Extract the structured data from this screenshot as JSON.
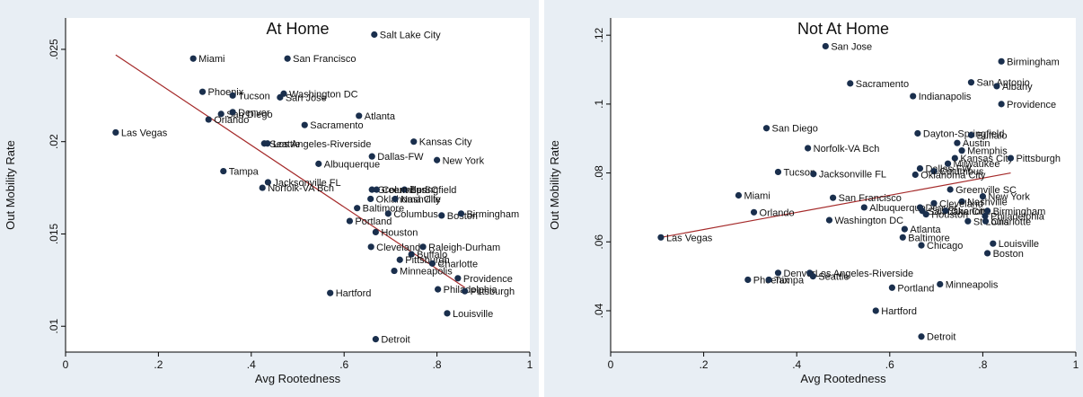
{
  "chart_data": [
    {
      "type": "scatter",
      "title": "At Home",
      "xlabel": "Avg Rootedness",
      "ylabel": "Out Mobility Rate",
      "xlim": [
        0,
        1
      ],
      "ylim": [
        0.0086,
        0.0267
      ],
      "xticks": [
        "0",
        ".2",
        ".4",
        ".6",
        ".8",
        "1"
      ],
      "xtick_values": [
        0,
        0.2,
        0.4,
        0.6,
        0.8,
        1
      ],
      "yticks": [
        ".01",
        ".015",
        ".02",
        ".025"
      ],
      "ytick_values": [
        0.01,
        0.015,
        0.02,
        0.025
      ],
      "grid": false,
      "fit_line": [
        [
          0.108,
          0.0247
        ],
        [
          0.86,
          0.0121
        ]
      ],
      "points": [
        {
          "label": "Salt Lake City",
          "x": 0.665,
          "y": 0.0258
        },
        {
          "label": "Miami",
          "x": 0.275,
          "y": 0.0245
        },
        {
          "label": "San Francisco",
          "x": 0.478,
          "y": 0.0245
        },
        {
          "label": "Phoenix",
          "x": 0.295,
          "y": 0.0227
        },
        {
          "label": "Tucson",
          "x": 0.36,
          "y": 0.0225
        },
        {
          "label": "Washington DC",
          "x": 0.47,
          "y": 0.0226
        },
        {
          "label": "San Jose",
          "x": 0.462,
          "y": 0.0224
        },
        {
          "label": "San Diego",
          "x": 0.335,
          "y": 0.0215
        },
        {
          "label": "Denver",
          "x": 0.36,
          "y": 0.0216
        },
        {
          "label": "Orlando",
          "x": 0.308,
          "y": 0.0212
        },
        {
          "label": "Atlanta",
          "x": 0.632,
          "y": 0.0214
        },
        {
          "label": "Sacramento",
          "x": 0.515,
          "y": 0.0209
        },
        {
          "label": "Las Vegas",
          "x": 0.108,
          "y": 0.0205
        },
        {
          "label": "Kansas City",
          "x": 0.75,
          "y": 0.02
        },
        {
          "label": "Seattle",
          "x": 0.428,
          "y": 0.0199
        },
        {
          "label": "Los Angeles-Riverside",
          "x": 0.435,
          "y": 0.0199
        },
        {
          "label": "Dallas-FW",
          "x": 0.66,
          "y": 0.0192
        },
        {
          "label": "New York",
          "x": 0.8,
          "y": 0.019
        },
        {
          "label": "Albuquerque",
          "x": 0.545,
          "y": 0.0188
        },
        {
          "label": "Tampa",
          "x": 0.34,
          "y": 0.0184
        },
        {
          "label": "Jacksonville FL",
          "x": 0.436,
          "y": 0.0178
        },
        {
          "label": "Norfolk-VA Bch",
          "x": 0.424,
          "y": 0.0175
        },
        {
          "label": "Greenville SC",
          "x": 0.66,
          "y": 0.0174
        },
        {
          "label": "Springfield",
          "x": 0.73,
          "y": 0.0174
        },
        {
          "label": "Columbus",
          "x": 0.67,
          "y": 0.0174
        },
        {
          "label": "Oklahoma City",
          "x": 0.657,
          "y": 0.0169
        },
        {
          "label": "Nashville",
          "x": 0.71,
          "y": 0.0169
        },
        {
          "label": "Baltimore",
          "x": 0.628,
          "y": 0.0164
        },
        {
          "label": "Columbus",
          "x": 0.695,
          "y": 0.0161
        },
        {
          "label": "Boston",
          "x": 0.81,
          "y": 0.016
        },
        {
          "label": "Birmingham",
          "x": 0.852,
          "y": 0.0161
        },
        {
          "label": "Portland",
          "x": 0.612,
          "y": 0.0157
        },
        {
          "label": "Houston",
          "x": 0.668,
          "y": 0.0151
        },
        {
          "label": "Cleveland",
          "x": 0.658,
          "y": 0.0143
        },
        {
          "label": "Raleigh-Durham",
          "x": 0.77,
          "y": 0.0143
        },
        {
          "label": "Buffalo",
          "x": 0.745,
          "y": 0.0139
        },
        {
          "label": "Pittsburgh",
          "x": 0.72,
          "y": 0.0136
        },
        {
          "label": "Charlotte",
          "x": 0.79,
          "y": 0.0134
        },
        {
          "label": "Minneapolis",
          "x": 0.708,
          "y": 0.013
        },
        {
          "label": "Providence",
          "x": 0.845,
          "y": 0.0126
        },
        {
          "label": "Hartford",
          "x": 0.57,
          "y": 0.0118
        },
        {
          "label": "Philadelphia",
          "x": 0.802,
          "y": 0.012
        },
        {
          "label": "Pittsburgh",
          "x": 0.86,
          "y": 0.0119
        },
        {
          "label": "Louisville",
          "x": 0.822,
          "y": 0.0107
        },
        {
          "label": "Detroit",
          "x": 0.668,
          "y": 0.0093
        }
      ]
    },
    {
      "type": "scatter",
      "title": "Not At Home",
      "xlabel": "Avg Rootedness",
      "ylabel": "Out Mobility Rate",
      "xlim": [
        0,
        1
      ],
      "ylim": [
        0.028,
        0.125
      ],
      "xticks": [
        "0",
        ".2",
        ".4",
        ".6",
        ".8",
        "1"
      ],
      "xtick_values": [
        0,
        0.2,
        0.4,
        0.6,
        0.8,
        1
      ],
      "yticks": [
        ".04",
        ".06",
        ".08",
        ".1",
        ".12"
      ],
      "ytick_values": [
        0.04,
        0.06,
        0.08,
        0.1,
        0.12
      ],
      "grid": false,
      "fit_line": [
        [
          0.108,
          0.0613
        ],
        [
          0.86,
          0.08
        ]
      ],
      "points": [
        {
          "label": "San Jose",
          "x": 0.462,
          "y": 0.1168
        },
        {
          "label": "Birmingham",
          "x": 0.84,
          "y": 0.1124
        },
        {
          "label": "Sacramento",
          "x": 0.515,
          "y": 0.106
        },
        {
          "label": "San Antonio",
          "x": 0.775,
          "y": 0.1063
        },
        {
          "label": "Albany",
          "x": 0.83,
          "y": 0.1052
        },
        {
          "label": "Indianapolis",
          "x": 0.65,
          "y": 0.1023
        },
        {
          "label": "Providence",
          "x": 0.84,
          "y": 0.1
        },
        {
          "label": "San Diego",
          "x": 0.335,
          "y": 0.093
        },
        {
          "label": "Dayton-Springfield",
          "x": 0.66,
          "y": 0.0915
        },
        {
          "label": "Buffalo",
          "x": 0.775,
          "y": 0.091
        },
        {
          "label": "Austin",
          "x": 0.745,
          "y": 0.0887
        },
        {
          "label": "Norfolk-VA Bch",
          "x": 0.424,
          "y": 0.0872
        },
        {
          "label": "Memphis",
          "x": 0.755,
          "y": 0.0865
        },
        {
          "label": "Kansas City",
          "x": 0.74,
          "y": 0.0843
        },
        {
          "label": "Pittsburgh",
          "x": 0.86,
          "y": 0.0843
        },
        {
          "label": "Milwaukee",
          "x": 0.725,
          "y": 0.0827
        },
        {
          "label": "Dallas-FW",
          "x": 0.665,
          "y": 0.0813
        },
        {
          "label": "Columbus",
          "x": 0.695,
          "y": 0.0805
        },
        {
          "label": "Tucson",
          "x": 0.36,
          "y": 0.0803
        },
        {
          "label": "Jacksonville FL",
          "x": 0.436,
          "y": 0.0797
        },
        {
          "label": "Oklahoma City",
          "x": 0.655,
          "y": 0.0795
        },
        {
          "label": "Greenville SC",
          "x": 0.73,
          "y": 0.0752
        },
        {
          "label": "Miami",
          "x": 0.275,
          "y": 0.0735
        },
        {
          "label": "New York",
          "x": 0.8,
          "y": 0.0732
        },
        {
          "label": "San Francisco",
          "x": 0.478,
          "y": 0.0728
        },
        {
          "label": "Nashville",
          "x": 0.755,
          "y": 0.0717
        },
        {
          "label": "Cleveland",
          "x": 0.695,
          "y": 0.0712
        },
        {
          "label": "Albuquerque",
          "x": 0.545,
          "y": 0.07
        },
        {
          "label": "Denver",
          "x": 0.665,
          "y": 0.07
        },
        {
          "label": "Salt Lake City",
          "x": 0.67,
          "y": 0.069
        },
        {
          "label": "Charlotte",
          "x": 0.72,
          "y": 0.069
        },
        {
          "label": "Birmingham",
          "x": 0.81,
          "y": 0.069
        },
        {
          "label": "Orlando",
          "x": 0.308,
          "y": 0.0686
        },
        {
          "label": "Houston",
          "x": 0.678,
          "y": 0.068
        },
        {
          "label": "Philadelphia",
          "x": 0.805,
          "y": 0.0675
        },
        {
          "label": "Washington DC",
          "x": 0.47,
          "y": 0.0663
        },
        {
          "label": "St Louis",
          "x": 0.768,
          "y": 0.066
        },
        {
          "label": "Charlotte",
          "x": 0.806,
          "y": 0.066
        },
        {
          "label": "Atlanta",
          "x": 0.632,
          "y": 0.0637
        },
        {
          "label": "Las Vegas",
          "x": 0.108,
          "y": 0.0613
        },
        {
          "label": "Baltimore",
          "x": 0.628,
          "y": 0.0613
        },
        {
          "label": "Louisville",
          "x": 0.822,
          "y": 0.0595
        },
        {
          "label": "Chicago",
          "x": 0.668,
          "y": 0.059
        },
        {
          "label": "Boston",
          "x": 0.81,
          "y": 0.0567
        },
        {
          "label": "Denver",
          "x": 0.36,
          "y": 0.051
        },
        {
          "label": "Los Angeles-Riverside",
          "x": 0.428,
          "y": 0.051
        },
        {
          "label": "Seattle",
          "x": 0.435,
          "y": 0.05
        },
        {
          "label": "Phoenix",
          "x": 0.295,
          "y": 0.049
        },
        {
          "label": "Tampa",
          "x": 0.34,
          "y": 0.049
        },
        {
          "label": "Minneapolis",
          "x": 0.708,
          "y": 0.0477
        },
        {
          "label": "Portland",
          "x": 0.605,
          "y": 0.0467
        },
        {
          "label": "Hartford",
          "x": 0.57,
          "y": 0.04
        },
        {
          "label": "Detroit",
          "x": 0.668,
          "y": 0.0325
        }
      ]
    }
  ],
  "colors": {
    "marker": "#1a2f4d",
    "fit_line": "#a52a2a",
    "panel_background": "#e8eef4",
    "axis": "#000000",
    "text": "#111111"
  }
}
